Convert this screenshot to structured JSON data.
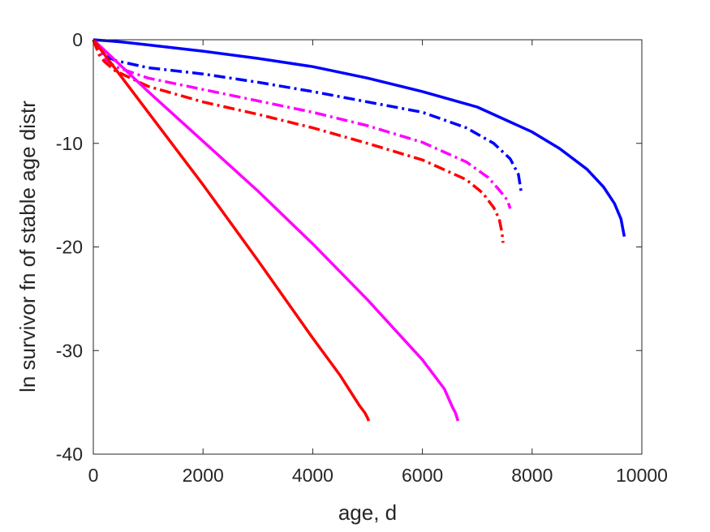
{
  "chart_data": {
    "type": "line",
    "title": "",
    "xlabel": "age, d",
    "ylabel": "ln survivor fn of stable age distr",
    "xlim": [
      0,
      10000
    ],
    "ylim": [
      -40,
      0
    ],
    "xticks": [
      0,
      2000,
      4000,
      6000,
      8000,
      10000
    ],
    "xtick_labels": [
      "0",
      "2000",
      "4000",
      "6000",
      "8000",
      "10000"
    ],
    "yticks": [
      0,
      -10,
      -20,
      -30,
      -40
    ],
    "ytick_labels": [
      "0",
      "-10",
      "-20",
      "-30",
      "-40"
    ],
    "grid": false,
    "legend": "none",
    "series": [
      {
        "color": "#0000ff",
        "style": "solid",
        "x": [
          0,
          500,
          1000,
          2000,
          3000,
          4000,
          5000,
          6000,
          7000,
          8000,
          8500,
          9000,
          9300,
          9500,
          9620,
          9680
        ],
        "y": [
          0,
          -0.2,
          -0.5,
          -1.1,
          -1.8,
          -2.6,
          -3.7,
          -5.0,
          -6.5,
          -8.9,
          -10.5,
          -12.5,
          -14.2,
          -15.8,
          -17.3,
          -19.0
        ]
      },
      {
        "color": "#0000ff",
        "style": "dashdot",
        "x": [
          0,
          100,
          200,
          400,
          1000,
          2000,
          3000,
          4000,
          5000,
          6000,
          6800,
          7300,
          7600,
          7750,
          7800
        ],
        "y": [
          0,
          -1.0,
          -1.5,
          -2.0,
          -2.7,
          -3.3,
          -4.1,
          -5.0,
          -6.0,
          -7.0,
          -8.5,
          -10.0,
          -11.5,
          -13.0,
          -14.7
        ]
      },
      {
        "color": "#ff00ff",
        "style": "dashdot",
        "x": [
          0,
          100,
          200,
          400,
          1000,
          2000,
          3000,
          4000,
          5000,
          6000,
          6800,
          7200,
          7400,
          7550,
          7600
        ],
        "y": [
          0,
          -1.2,
          -1.8,
          -2.6,
          -3.7,
          -4.8,
          -5.9,
          -7.0,
          -8.3,
          -9.9,
          -11.8,
          -13.3,
          -14.5,
          -15.5,
          -16.3
        ]
      },
      {
        "color": "#ff0000",
        "style": "dashdot",
        "x": [
          0,
          100,
          200,
          400,
          1000,
          2000,
          3000,
          4000,
          5000,
          6000,
          6800,
          7100,
          7300,
          7400,
          7450,
          7470
        ],
        "y": [
          0,
          -1.4,
          -2.1,
          -3.0,
          -4.5,
          -6.0,
          -7.2,
          -8.5,
          -10.0,
          -11.6,
          -13.5,
          -14.8,
          -16.2,
          -17.3,
          -18.6,
          -19.6
        ]
      },
      {
        "color": "#ff00ff",
        "style": "solid",
        "x": [
          0,
          500,
          1000,
          2000,
          3000,
          4000,
          5000,
          6000,
          6400,
          6550,
          6600,
          6650
        ],
        "y": [
          0,
          -2.5,
          -5.0,
          -9.8,
          -14.6,
          -19.7,
          -25.1,
          -30.9,
          -33.7,
          -35.5,
          -36.0,
          -36.8
        ]
      },
      {
        "color": "#ff0000",
        "style": "solid",
        "x": [
          0,
          500,
          1000,
          2000,
          3000,
          4000,
          4500,
          4850,
          4950,
          5000,
          5020
        ],
        "y": [
          0,
          -3.5,
          -7.0,
          -14.0,
          -21.3,
          -28.8,
          -32.4,
          -35.3,
          -36.0,
          -36.5,
          -36.8
        ]
      }
    ]
  }
}
